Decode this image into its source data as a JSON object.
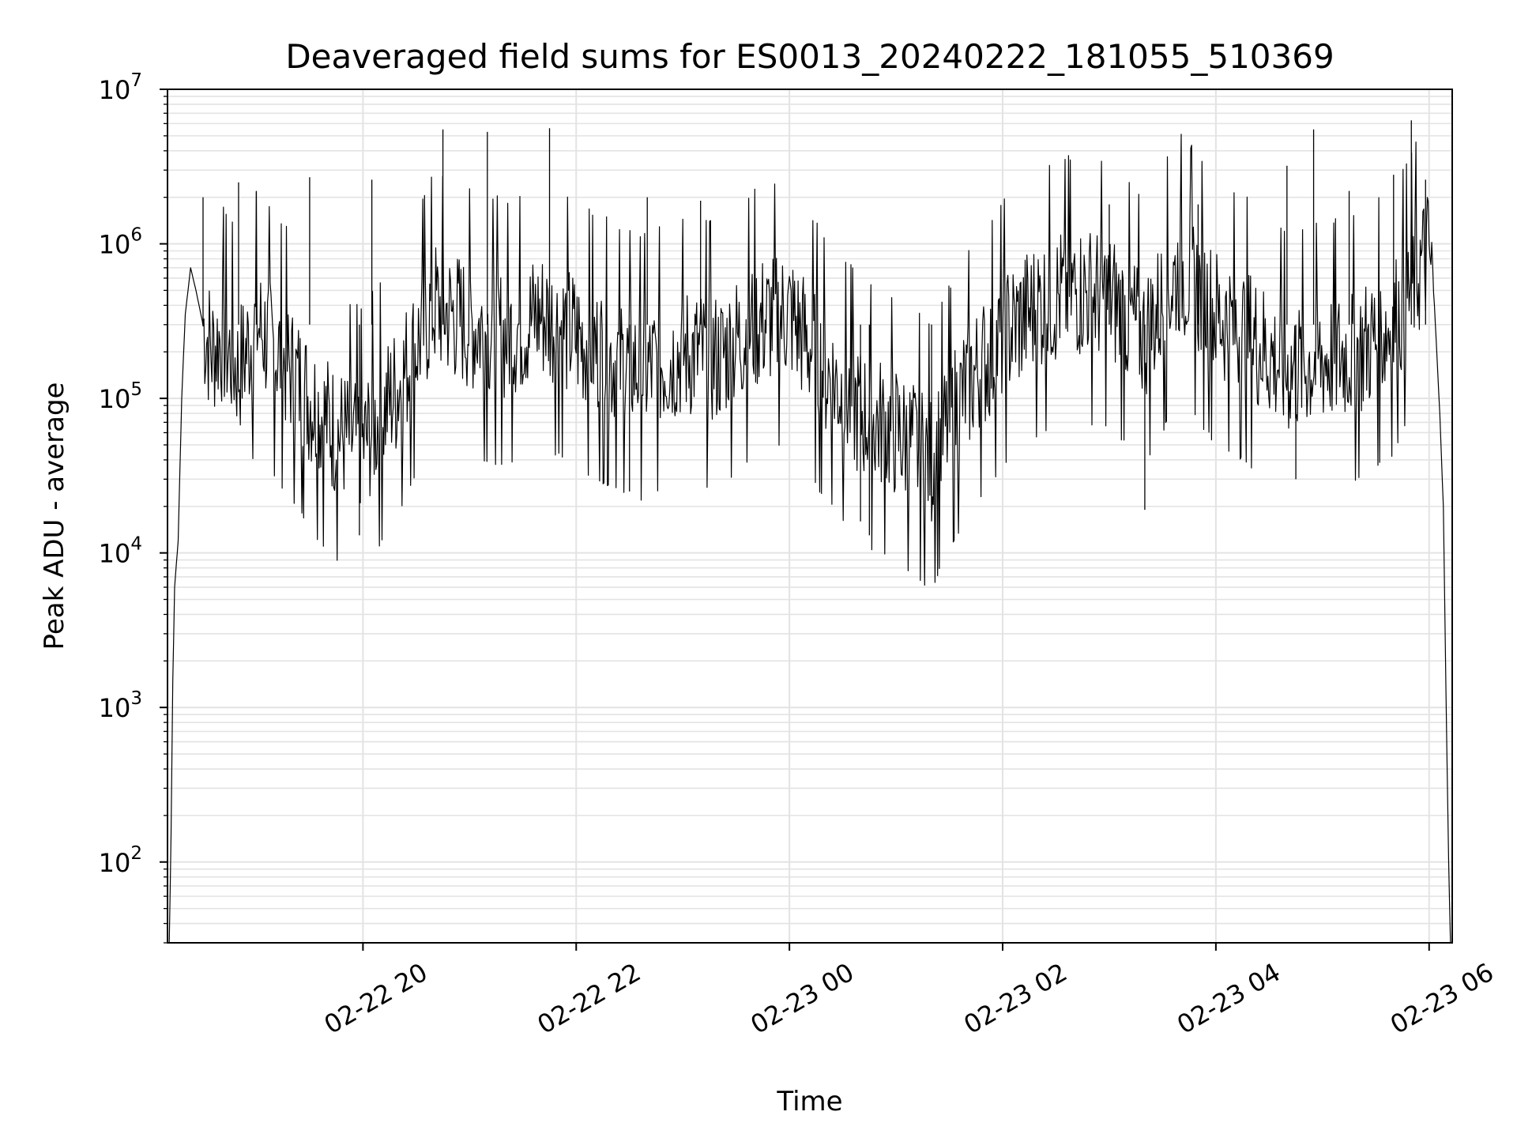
{
  "chart_data": {
    "type": "line",
    "title": "Deaveraged field sums for ES0013_20240222_181055_510369",
    "xlabel": "Time",
    "ylabel": "Peak ADU - average",
    "y_scale": "log",
    "ylim": [
      30,
      10000000
    ],
    "xlim": [
      "2024-02-22 18:10",
      "2024-02-23 06:13"
    ],
    "grid": true,
    "line_color": "#000000",
    "grid_color": "#e3e3e3",
    "x_ticks": [
      {
        "label": "02-22 20",
        "value": "2024-02-22 20:00"
      },
      {
        "label": "02-22 22",
        "value": "2024-02-22 22:00"
      },
      {
        "label": "02-23 00",
        "value": "2024-02-23 00:00"
      },
      {
        "label": "02-23 02",
        "value": "2024-02-23 02:00"
      },
      {
        "label": "02-23 04",
        "value": "2024-02-23 04:00"
      },
      {
        "label": "02-23 06",
        "value": "2024-02-23 06:00"
      }
    ],
    "y_ticks": [
      {
        "value": 100,
        "base": "10",
        "exp": "2"
      },
      {
        "value": 1000,
        "base": "10",
        "exp": "3"
      },
      {
        "value": 10000,
        "base": "10",
        "exp": "4"
      },
      {
        "value": 100000,
        "base": "10",
        "exp": "5"
      },
      {
        "value": 1000000,
        "base": "10",
        "exp": "6"
      },
      {
        "value": 10000000,
        "base": "10",
        "exp": "7"
      }
    ],
    "series": [
      {
        "x": [
          "2024-02-22 18:11",
          "2024-02-22 18:12",
          "2024-02-22 18:13",
          "2024-02-22 18:14",
          "2024-02-22 18:16",
          "2024-02-22 18:18",
          "2024-02-22 18:20",
          "2024-02-22 18:23",
          "2024-02-22 18:26",
          "2024-02-22 18:30",
          "2024-02-22 18:35",
          "2024-02-22 18:40",
          "2024-02-22 18:50",
          "2024-02-22 19:00",
          "2024-02-22 19:15",
          "2024-02-22 19:30",
          "2024-02-22 19:45",
          "2024-02-22 20:00",
          "2024-02-22 20:20",
          "2024-02-22 20:40",
          "2024-02-22 21:00",
          "2024-02-22 21:20",
          "2024-02-22 21:40",
          "2024-02-22 22:00",
          "2024-02-22 22:20",
          "2024-02-22 22:40",
          "2024-02-22 23:00",
          "2024-02-22 23:20",
          "2024-02-22 23:40",
          "2024-02-23 00:00",
          "2024-02-23 00:20",
          "2024-02-23 00:40",
          "2024-02-23 01:00",
          "2024-02-23 01:20",
          "2024-02-23 01:40",
          "2024-02-23 02:00",
          "2024-02-23 02:20",
          "2024-02-23 02:40",
          "2024-02-23 03:00",
          "2024-02-23 03:20",
          "2024-02-23 03:40",
          "2024-02-23 04:00",
          "2024-02-23 04:20",
          "2024-02-23 04:40",
          "2024-02-23 05:00",
          "2024-02-23 05:20",
          "2024-02-23 05:40",
          "2024-02-23 05:55",
          "2024-02-23 06:00",
          "2024-02-23 06:03",
          "2024-02-23 06:06",
          "2024-02-23 06:08",
          "2024-02-23 06:10",
          "2024-02-23 06:11",
          "2024-02-23 06:12"
        ],
        "y": [
          30,
          150,
          1500,
          6000,
          12000,
          100000,
          350000,
          700000,
          500000,
          300000,
          200000,
          250000,
          150000,
          300000,
          180000,
          100000,
          60000,
          50000,
          120000,
          400000,
          300000,
          250000,
          350000,
          250000,
          180000,
          150000,
          200000,
          180000,
          300000,
          350000,
          150000,
          80000,
          60000,
          40000,
          120000,
          250000,
          400000,
          500000,
          450000,
          250000,
          700000,
          350000,
          250000,
          150000,
          180000,
          200000,
          300000,
          700000,
          900000,
          400000,
          80000,
          20000,
          500,
          100,
          30
        ],
        "spikes": [
          {
            "x": "2024-02-22 18:30",
            "y": 2000000
          },
          {
            "x": "2024-02-22 18:50",
            "y": 2500000
          },
          {
            "x": "2024-02-22 19:00",
            "y": 2200000
          },
          {
            "x": "2024-02-22 19:30",
            "y": 2700000
          },
          {
            "x": "2024-02-22 19:58",
            "y": 13000
          },
          {
            "x": "2024-02-22 20:05",
            "y": 2600000
          },
          {
            "x": "2024-02-22 20:45",
            "y": 5500000
          },
          {
            "x": "2024-02-22 21:10",
            "y": 5300000
          },
          {
            "x": "2024-02-22 21:45",
            "y": 5600000
          },
          {
            "x": "2024-02-22 22:30",
            "y": 25000
          },
          {
            "x": "2024-02-22 22:40",
            "y": 2000000
          },
          {
            "x": "2024-02-22 23:10",
            "y": 1900000
          },
          {
            "x": "2024-02-23 00:40",
            "y": 16000
          },
          {
            "x": "2024-02-23 00:45",
            "y": 13000
          },
          {
            "x": "2024-02-23 01:20",
            "y": 16000
          },
          {
            "x": "2024-02-23 03:00",
            "y": 1800000
          },
          {
            "x": "2024-02-23 03:20",
            "y": 19000
          },
          {
            "x": "2024-02-23 03:50",
            "y": 1800000
          },
          {
            "x": "2024-02-23 04:40",
            "y": 3200000
          },
          {
            "x": "2024-02-23 04:45",
            "y": 30000
          },
          {
            "x": "2024-02-23 04:55",
            "y": 5500000
          },
          {
            "x": "2024-02-23 05:15",
            "y": 2200000
          },
          {
            "x": "2024-02-23 05:40",
            "y": 2800000
          },
          {
            "x": "2024-02-23 05:50",
            "y": 6300000
          },
          {
            "x": "2024-02-23 05:58",
            "y": 2600000
          }
        ]
      }
    ]
  }
}
